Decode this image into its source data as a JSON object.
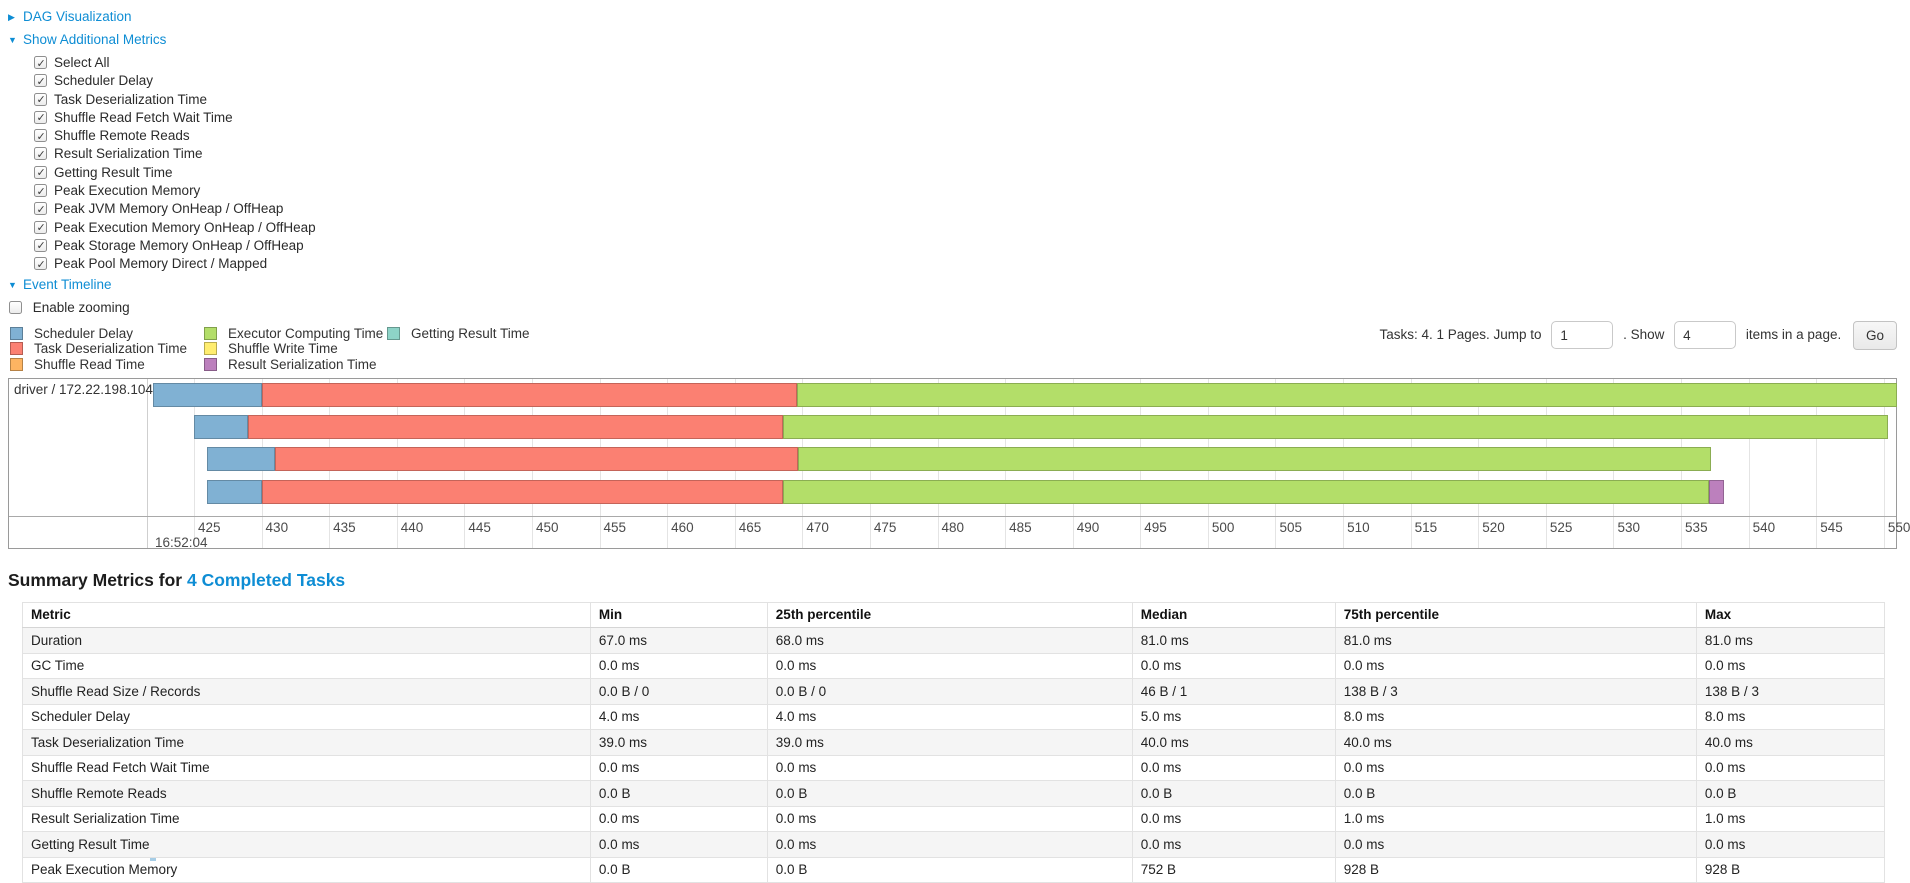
{
  "controls": {
    "dag": {
      "arrow": "▶",
      "label": "DAG Visualization"
    },
    "metrics": {
      "arrow": "▼",
      "label": "Show Additional Metrics",
      "items": [
        {
          "label": "Select All",
          "checked": true
        },
        {
          "label": "Scheduler Delay",
          "checked": true
        },
        {
          "label": "Task Deserialization Time",
          "checked": true
        },
        {
          "label": "Shuffle Read Fetch Wait Time",
          "checked": true
        },
        {
          "label": "Shuffle Remote Reads",
          "checked": true
        },
        {
          "label": "Result Serialization Time",
          "checked": true
        },
        {
          "label": "Getting Result Time",
          "checked": true
        },
        {
          "label": "Peak Execution Memory",
          "checked": true
        },
        {
          "label": "Peak JVM Memory OnHeap / OffHeap",
          "checked": true
        },
        {
          "label": "Peak Execution Memory OnHeap / OffHeap",
          "checked": true
        },
        {
          "label": "Peak Storage Memory OnHeap / OffHeap",
          "checked": true
        },
        {
          "label": "Peak Pool Memory Direct / Mapped",
          "checked": true
        }
      ]
    },
    "timeline_section": {
      "arrow": "▼",
      "label": "Event Timeline"
    },
    "enable_zooming": {
      "label": "Enable zooming",
      "checked": false
    }
  },
  "legend": {
    "columns": [
      [
        {
          "label": "Scheduler Delay",
          "color": "#80B1D3"
        },
        {
          "label": "Task Deserialization Time",
          "color": "#FB8072"
        },
        {
          "label": "Shuffle Read Time",
          "color": "#FDB462"
        }
      ],
      [
        {
          "label": "Executor Computing Time",
          "color": "#B3DE69"
        },
        {
          "label": "Shuffle Write Time",
          "color": "#FFED6F"
        },
        {
          "label": "Result Serialization Time",
          "color": "#BC80BD"
        }
      ],
      [
        {
          "label": "Getting Result Time",
          "color": "#8DD3C7"
        }
      ]
    ]
  },
  "pagination": {
    "prefix": "Tasks: 4. 1 Pages. Jump to",
    "jump_value": "1",
    "middle": ". Show",
    "show_value": "4",
    "suffix": "items in a page.",
    "go_label": "Go"
  },
  "chart_data": {
    "type": "timeline-gantt",
    "group_label": "driver / 172.22.198.104",
    "x_axis": {
      "unit": "ms within second",
      "domain": [
        421.6,
        550.9
      ],
      "tick_start": 425,
      "tick_end": 550,
      "tick_step": 5,
      "major_time_label": "16:52:04",
      "grid": true
    },
    "colors": {
      "scheduler_delay": "#80B1D3",
      "task_deserialization": "#FB8072",
      "shuffle_read": "#FDB462",
      "executor_computing": "#B3DE69",
      "shuffle_write": "#FFED6F",
      "result_serialization": "#BC80BD",
      "getting_result": "#8DD3C7"
    },
    "tasks": [
      {
        "row": 0,
        "segments": [
          {
            "name": "scheduler_delay",
            "start": 422.0,
            "end": 430.0
          },
          {
            "name": "task_deserialization",
            "start": 430.0,
            "end": 469.6
          },
          {
            "name": "executor_computing",
            "start": 469.6,
            "end": 551.0
          }
        ]
      },
      {
        "row": 1,
        "segments": [
          {
            "name": "scheduler_delay",
            "start": 425.0,
            "end": 429.0
          },
          {
            "name": "task_deserialization",
            "start": 429.0,
            "end": 468.6
          },
          {
            "name": "executor_computing",
            "start": 468.6,
            "end": 550.3
          }
        ]
      },
      {
        "row": 2,
        "segments": [
          {
            "name": "scheduler_delay",
            "start": 426.0,
            "end": 431.0
          },
          {
            "name": "task_deserialization",
            "start": 431.0,
            "end": 469.7
          },
          {
            "name": "executor_computing",
            "start": 469.7,
            "end": 537.2
          }
        ]
      },
      {
        "row": 3,
        "segments": [
          {
            "name": "scheduler_delay",
            "start": 426.0,
            "end": 430.0
          },
          {
            "name": "task_deserialization",
            "start": 430.0,
            "end": 468.6
          },
          {
            "name": "executor_computing",
            "start": 468.6,
            "end": 537.1
          },
          {
            "name": "result_serialization",
            "start": 537.1,
            "end": 538.2
          }
        ]
      }
    ]
  },
  "summary": {
    "title_prefix": "Summary Metrics for",
    "title_link": "4 Completed Tasks",
    "columns": [
      "Metric",
      "Min",
      "25th percentile",
      "Median",
      "75th percentile",
      "Max"
    ],
    "column_widths": [
      "30.5%",
      "9.5%",
      "19.6%",
      "10.9%",
      "19.4%",
      "10.1%"
    ],
    "rows": [
      [
        "Duration",
        "67.0 ms",
        "68.0 ms",
        "81.0 ms",
        "81.0 ms",
        "81.0 ms"
      ],
      [
        "GC Time",
        "0.0 ms",
        "0.0 ms",
        "0.0 ms",
        "0.0 ms",
        "0.0 ms"
      ],
      [
        "Shuffle Read Size / Records",
        "0.0 B / 0",
        "0.0 B / 0",
        "46 B / 1",
        "138 B / 3",
        "138 B / 3"
      ],
      [
        "Scheduler Delay",
        "4.0 ms",
        "4.0 ms",
        "5.0 ms",
        "8.0 ms",
        "8.0 ms"
      ],
      [
        "Task Deserialization Time",
        "39.0 ms",
        "39.0 ms",
        "40.0 ms",
        "40.0 ms",
        "40.0 ms"
      ],
      [
        "Shuffle Read Fetch Wait Time",
        "0.0 ms",
        "0.0 ms",
        "0.0 ms",
        "0.0 ms",
        "0.0 ms"
      ],
      [
        "Shuffle Remote Reads",
        "0.0 B",
        "0.0 B",
        "0.0 B",
        "0.0 B",
        "0.0 B"
      ],
      [
        "Result Serialization Time",
        "0.0 ms",
        "0.0 ms",
        "0.0 ms",
        "1.0 ms",
        "1.0 ms"
      ],
      [
        "Getting Result Time",
        "0.0 ms",
        "0.0 ms",
        "0.0 ms",
        "0.0 ms",
        "0.0 ms"
      ],
      [
        "Peak Execution Memory",
        "0.0 B",
        "0.0 B",
        "752 B",
        "928 B",
        "928 B"
      ]
    ]
  }
}
